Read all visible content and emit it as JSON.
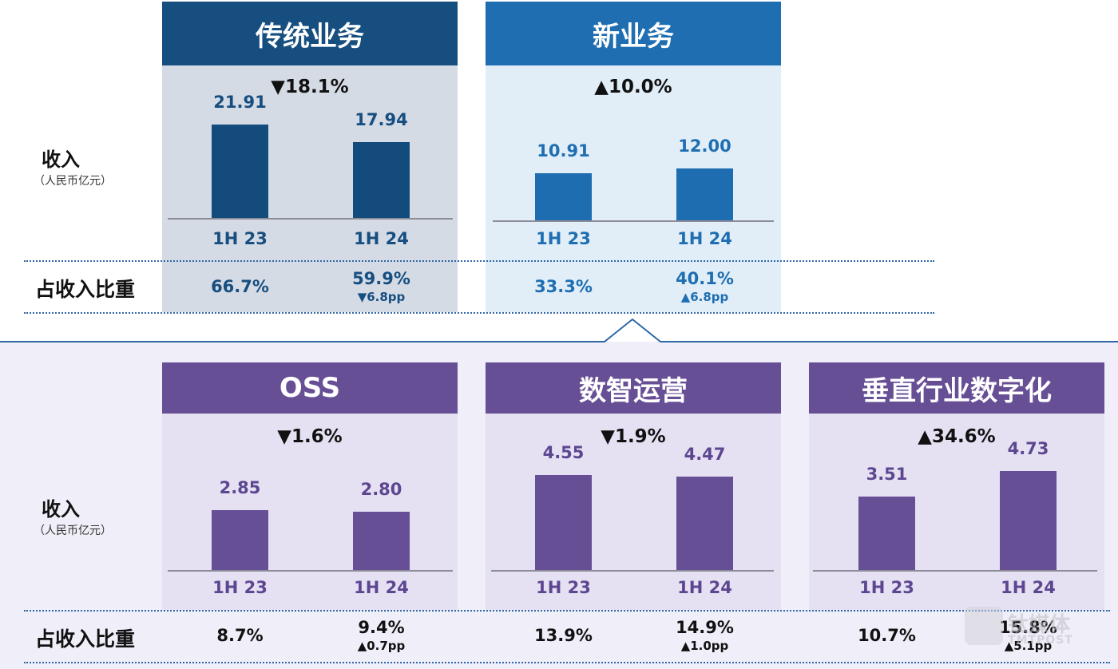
{
  "colors": {
    "top_panel_legacy_bg": "#d5dbe5",
    "top_panel_new_bg": "#e1eef8",
    "legacy_header": "#174e80",
    "new_header": "#1e6eb1",
    "legacy_bar": "#144b7d",
    "new_bar": "#1d6db0",
    "legacy_text": "#174e80",
    "new_text": "#1e6eb1",
    "purple_header": "#674f96",
    "purple_bar": "#674f96",
    "purple_text": "#5d4690",
    "bottom_bg": "#f0eef8",
    "purple_panel_bg": "#e5e1f3",
    "dotted_line": "#2f66a8",
    "connector_line": "#2f66a8"
  },
  "labels": {
    "revenue": "收入",
    "revenue_unit": "（人民币亿元）",
    "share": "占收入比重"
  },
  "chart_data": [
    {
      "type": "bar",
      "title": "传统业务",
      "change": "▼18.1%",
      "categories": [
        "1H 23",
        "1H 24"
      ],
      "values": [
        21.91,
        17.94
      ],
      "value_labels": [
        "21.91",
        "17.94"
      ],
      "ylabel": "收入（人民币亿元）",
      "ylim": [
        0,
        25
      ],
      "share": [
        "66.7%",
        "59.9%"
      ],
      "share_change": "▼6.8pp"
    },
    {
      "type": "bar",
      "title": "新业务",
      "change": "▲10.0%",
      "categories": [
        "1H 23",
        "1H 24"
      ],
      "values": [
        10.91,
        12.0
      ],
      "value_labels": [
        "10.91",
        "12.00"
      ],
      "ylabel": "收入（人民币亿元）",
      "ylim": [
        0,
        25
      ],
      "share": [
        "33.3%",
        "40.1%"
      ],
      "share_change": "▲6.8pp"
    },
    {
      "type": "bar",
      "title": "OSS",
      "change": "▼1.6%",
      "categories": [
        "1H 23",
        "1H 24"
      ],
      "values": [
        2.85,
        2.8
      ],
      "value_labels": [
        "2.85",
        "2.80"
      ],
      "ylabel": "收入（人民币亿元）",
      "ylim": [
        0,
        5.5
      ],
      "share": [
        "8.7%",
        "9.4%"
      ],
      "share_change": "▲0.7pp"
    },
    {
      "type": "bar",
      "title": "数智运营",
      "change": "▼1.9%",
      "categories": [
        "1H 23",
        "1H 24"
      ],
      "values": [
        4.55,
        4.47
      ],
      "value_labels": [
        "4.55",
        "4.47"
      ],
      "ylabel": "收入（人民币亿元）",
      "ylim": [
        0,
        5.5
      ],
      "share": [
        "13.9%",
        "14.9%"
      ],
      "share_change": "▲1.0pp"
    },
    {
      "type": "bar",
      "title": "垂直行业数字化",
      "change": "▲34.6%",
      "categories": [
        "1H 23",
        "1H 24"
      ],
      "values": [
        3.51,
        4.73
      ],
      "value_labels": [
        "3.51",
        "4.73"
      ],
      "ylabel": "收入（人民币亿元）",
      "ylim": [
        0,
        5.5
      ],
      "share": [
        "10.7%",
        "15.8%"
      ],
      "share_change": "▲5.1pp"
    }
  ],
  "watermark": {
    "brand_cn": "钛媒体",
    "brand_en": "TMTPOST"
  }
}
